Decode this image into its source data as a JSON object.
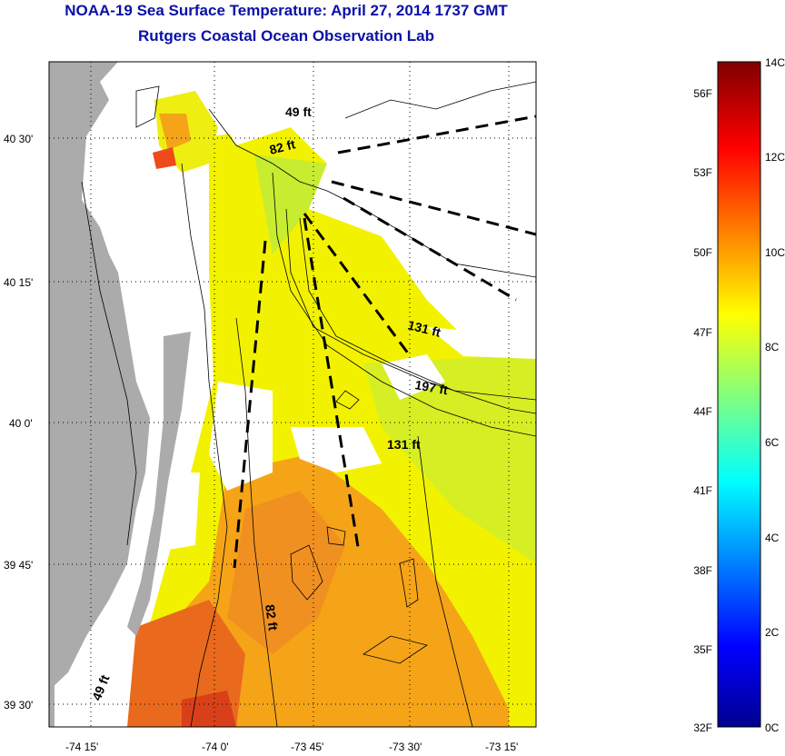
{
  "header": {
    "title_line1": "NOAA-19 Sea Surface Temperature:  April 27, 2014 1737 GMT",
    "title_line2": "Rutgers Coastal Ocean Observation Lab"
  },
  "map": {
    "lat_labels": [
      "40 30'",
      "40 15'",
      "40 0'",
      "39 45'",
      "39 30'"
    ],
    "lon_labels": [
      "-74 15'",
      "-74 0'",
      "-73 45'",
      "-73 30'",
      "-73 15'"
    ],
    "contour_labels": [
      "49 ft",
      "82 ft",
      "131 ft",
      "197 ft",
      "131 ft",
      "82 ft",
      "49 ft"
    ],
    "colors": {
      "land": "#ababab",
      "cloud": "#ffffff",
      "dash": "#000000"
    }
  },
  "colorbar": {
    "celsius_labels": [
      "14C",
      "12C",
      "10C",
      "8C",
      "6C",
      "4C",
      "2C",
      "0C"
    ],
    "fahrenheit_labels": [
      "56F",
      "53F",
      "50F",
      "47F",
      "44F",
      "41F",
      "38F",
      "35F",
      "32F"
    ],
    "colors": [
      "#800000",
      "#ff0000",
      "#ff8000",
      "#ffff00",
      "#80ff80",
      "#00ffff",
      "#0080ff",
      "#0000ff",
      "#000080"
    ]
  }
}
